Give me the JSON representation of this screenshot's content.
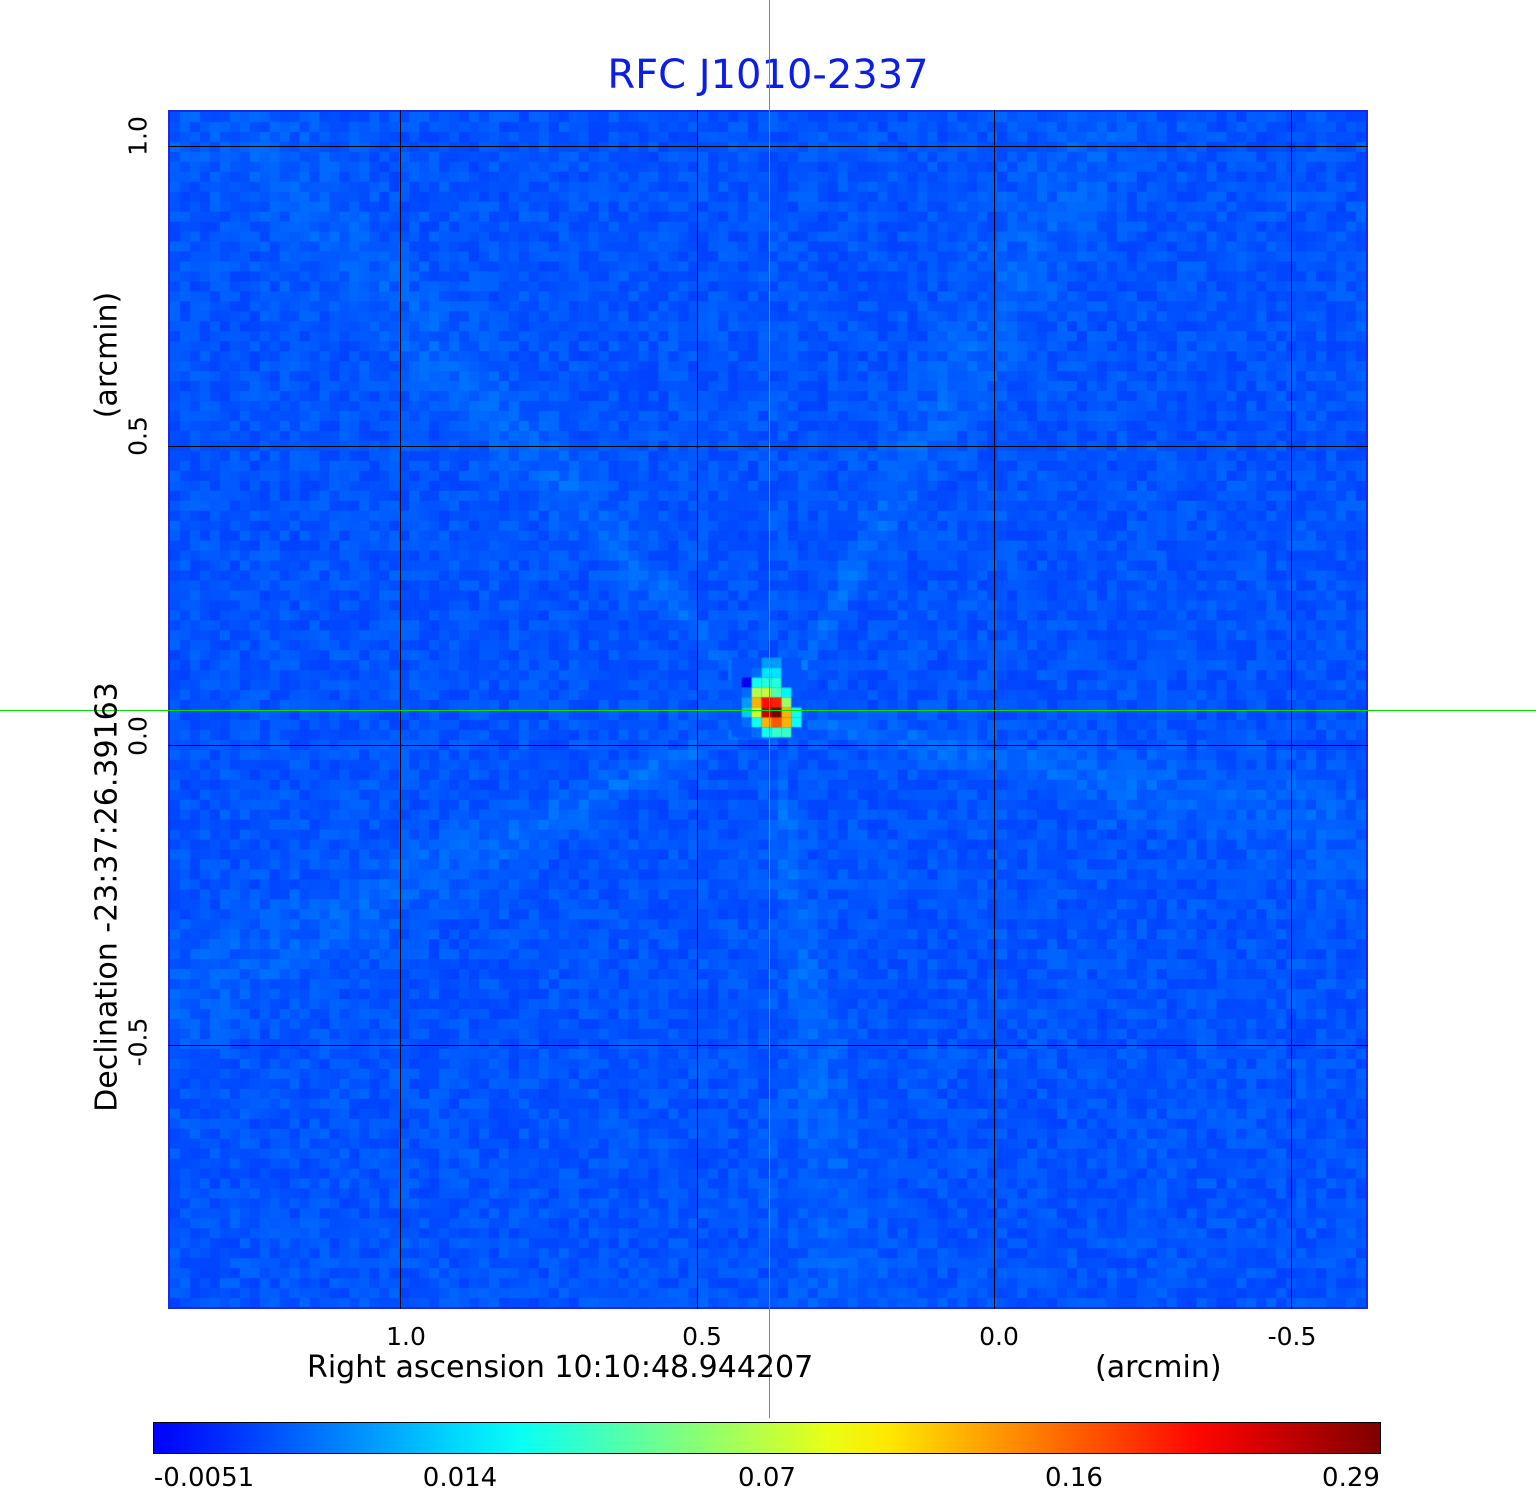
{
  "chart_data": {
    "type": "heatmap",
    "title": "RFC J1010-2337",
    "xlabel": "Right ascension  10:10:48.944207",
    "xunit": "(arcmin)",
    "ylabel": "Declination  -23:37:26.39163",
    "yunit": "(arcmin)",
    "xlim": [
      1.39,
      -0.63
    ],
    "ylim": [
      -0.94,
      1.06
    ],
    "xticks": [
      1.0,
      0.5,
      0.0,
      -0.5
    ],
    "xtick_labels": [
      "1.0",
      "0.5",
      "0.0",
      "-0.5"
    ],
    "yticks": [
      1.0,
      0.5,
      0.0,
      -0.5
    ],
    "ytick_labels": [
      "1.0",
      "0.5",
      "0.0",
      "-0.5"
    ],
    "grid": true,
    "colormap": "jet",
    "colorbar": {
      "placement": "bottom",
      "ticks": [
        -0.0051,
        0.014,
        0.07,
        0.16,
        0.29
      ],
      "tick_labels": [
        "-0.0051",
        "0.014",
        "0.07",
        "0.16",
        "0.29"
      ]
    },
    "crosshair": {
      "x": 0.379,
      "y": 0.06,
      "color": "#00e000"
    },
    "background_level": 0.004,
    "source_cells": [
      [
        0.004,
        0.004,
        0.004,
        0.01,
        0.01,
        0.004,
        0.004
      ],
      [
        0.004,
        0.004,
        0.006,
        0.02,
        0.02,
        0.004,
        0.004
      ],
      [
        0.004,
        -0.004,
        0.03,
        0.035,
        0.035,
        0.004,
        0.004
      ],
      [
        0.004,
        0.006,
        0.07,
        0.075,
        0.045,
        0.025,
        0.004
      ],
      [
        0.004,
        0.01,
        0.13,
        0.21,
        0.2,
        0.065,
        0.004
      ],
      [
        0.004,
        0.014,
        0.085,
        0.25,
        0.29,
        0.13,
        0.03
      ],
      [
        0.004,
        0.006,
        0.03,
        0.13,
        0.17,
        0.13,
        0.03
      ],
      [
        0.004,
        0.004,
        0.006,
        0.03,
        0.04,
        0.04,
        0.004
      ]
    ]
  }
}
